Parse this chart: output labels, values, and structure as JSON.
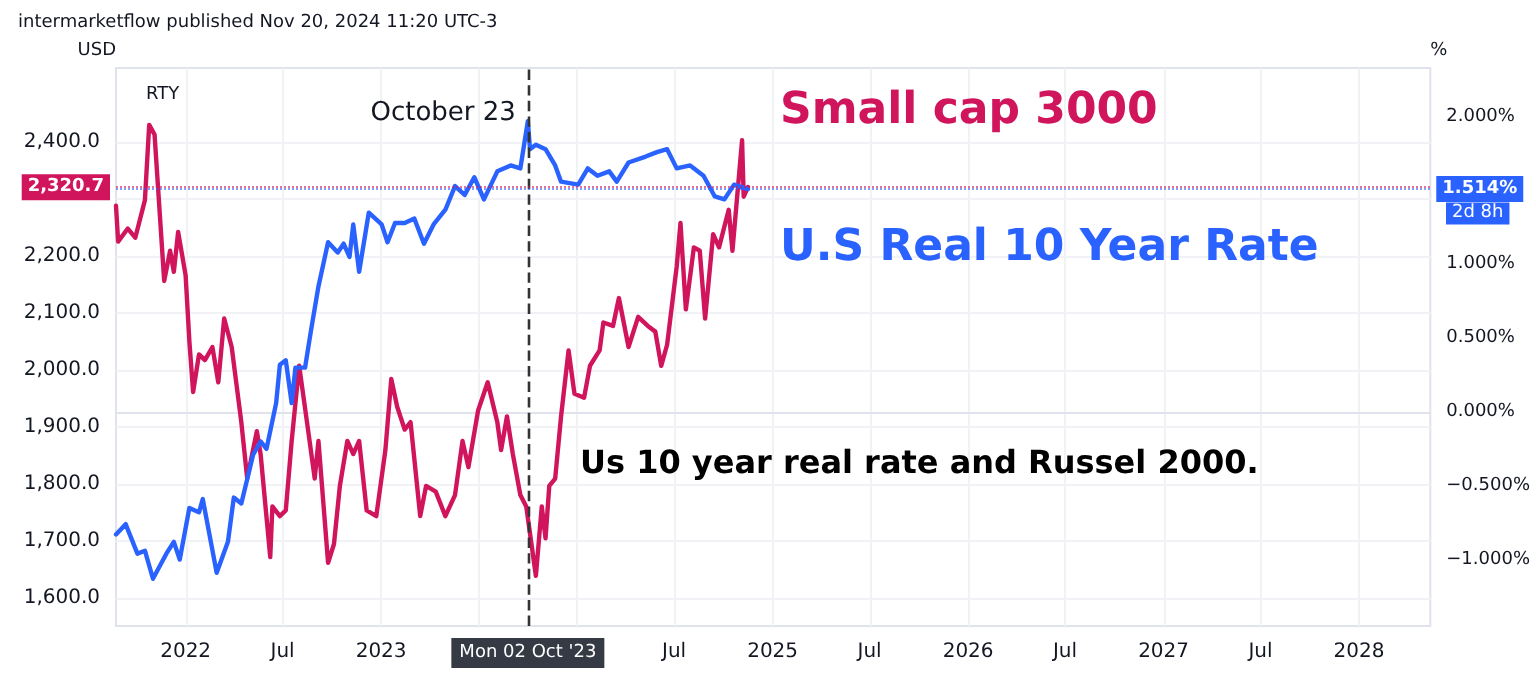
{
  "chart_data": {
    "type": "line",
    "title": "intermarketflow published Nov 20, 2024 11:20 UTC-3",
    "subtitle": "RTY",
    "ylabel": "USD",
    "y2label": "%",
    "series": [
      {
        "name": "Small cap 3000",
        "color": "#d0155d",
        "x": [
          "2021-08-24",
          "2021-08-28",
          "2021-09-15",
          "2021-09-29",
          "2021-10-17",
          "2021-10-25",
          "2021-11-04",
          "2021-11-22",
          "2021-12-03",
          "2021-12-10",
          "2021-12-18",
          "2022-01-01",
          "2022-01-08",
          "2022-01-15",
          "2022-01-26",
          "2022-02-06",
          "2022-02-20",
          "2022-03-03",
          "2022-03-14",
          "2022-03-28",
          "2022-04-15",
          "2022-04-26",
          "2022-05-14",
          "2022-05-21",
          "2022-06-08",
          "2022-06-12",
          "2022-06-26",
          "2022-07-07",
          "2022-07-18",
          "2022-08-01",
          "2022-08-19",
          "2022-08-30",
          "2022-09-06",
          "2022-09-24",
          "2022-10-05",
          "2022-10-16",
          "2022-10-30",
          "2022-11-10",
          "2022-11-21",
          "2022-12-05",
          "2022-12-23",
          "2023-01-09",
          "2023-01-20",
          "2023-01-31",
          "2023-02-14",
          "2023-02-25",
          "2023-03-15",
          "2023-03-26",
          "2023-04-13",
          "2023-05-01",
          "2023-05-19",
          "2023-06-02",
          "2023-06-13",
          "2023-07-01",
          "2023-07-19",
          "2023-08-06",
          "2023-08-13",
          "2023-08-24",
          "2023-09-04",
          "2023-09-18",
          "2023-09-29",
          "2023-10-17",
          "2023-10-28",
          "2023-11-04",
          "2023-11-11",
          "2023-11-22",
          "2023-12-03",
          "2023-12-17",
          "2023-12-28",
          "2024-01-15",
          "2024-01-26",
          "2024-02-13",
          "2024-02-20",
          "2024-03-09",
          "2024-03-20",
          "2024-04-07",
          "2024-04-25",
          "2024-05-13",
          "2024-05-27",
          "2024-06-07",
          "2024-06-18",
          "2024-07-06",
          "2024-07-13",
          "2024-07-23",
          "2024-08-07",
          "2024-08-18",
          "2024-08-28",
          "2024-09-12",
          "2024-09-23",
          "2024-10-11",
          "2024-10-18",
          "2024-11-05",
          "2024-11-08",
          "2024-11-16"
        ],
        "values": [
          2288,
          2225,
          2248,
          2232,
          2298,
          2430,
          2413,
          2156,
          2209,
          2172,
          2242,
          2166,
          2050,
          1961,
          2027,
          2017,
          2040,
          1978,
          2090,
          2040,
          1908,
          1809,
          1892,
          1852,
          1671,
          1760,
          1743,
          1753,
          1875,
          2007,
          1885,
          1809,
          1875,
          1661,
          1694,
          1796,
          1875,
          1852,
          1875,
          1753,
          1743,
          1859,
          1984,
          1935,
          1895,
          1908,
          1743,
          1796,
          1786,
          1743,
          1780,
          1875,
          1829,
          1928,
          1978,
          1908,
          1859,
          1918,
          1852,
          1780,
          1760,
          1638,
          1760,
          1704,
          1796,
          1809,
          1918,
          2034,
          1958,
          1951,
          2007,
          2034,
          2083,
          2077,
          2126,
          2040,
          2093,
          2077,
          2067,
          2007,
          2044,
          2182,
          2258,
          2106,
          2215,
          2209,
          2090,
          2238,
          2215,
          2281,
          2209,
          2403,
          2304,
          2321
        ]
      },
      {
        "name": "U.S Real 10 Year Rate",
        "color": "#2962ff",
        "axis": "y2",
        "x": [
          "2021-08-24",
          "2021-09-11",
          "2021-10-03",
          "2021-10-17",
          "2021-11-01",
          "2021-11-26",
          "2021-12-10",
          "2021-12-21",
          "2022-01-08",
          "2022-01-26",
          "2022-02-02",
          "2022-02-28",
          "2022-03-21",
          "2022-04-01",
          "2022-04-15",
          "2022-05-07",
          "2022-05-21",
          "2022-06-01",
          "2022-06-19",
          "2022-06-26",
          "2022-07-07",
          "2022-07-18",
          "2022-07-25",
          "2022-08-12",
          "2022-08-23",
          "2022-09-06",
          "2022-09-24",
          "2022-10-12",
          "2022-10-23",
          "2022-11-03",
          "2022-11-10",
          "2022-11-21",
          "2022-12-09",
          "2023-01-02",
          "2023-01-13",
          "2023-01-27",
          "2023-02-14",
          "2023-03-04",
          "2023-03-22",
          "2023-04-09",
          "2023-05-01",
          "2023-05-19",
          "2023-06-06",
          "2023-06-24",
          "2023-07-12",
          "2023-08-06",
          "2023-08-31",
          "2023-09-18",
          "2023-10-02",
          "2023-10-06",
          "2023-10-17",
          "2023-11-04",
          "2023-11-22",
          "2023-12-03",
          "2024-01-04",
          "2024-01-22",
          "2024-02-09",
          "2024-03-02",
          "2024-03-16",
          "2024-04-07",
          "2024-05-09",
          "2024-05-30",
          "2024-06-18",
          "2024-07-06",
          "2024-07-31",
          "2024-08-25",
          "2024-09-15",
          "2024-10-03",
          "2024-10-21",
          "2024-11-16"
        ],
        "values": [
          -0.83,
          -0.76,
          -0.96,
          -0.94,
          -1.13,
          -0.96,
          -0.88,
          -1.0,
          -0.65,
          -0.68,
          -0.59,
          -1.09,
          -0.88,
          -0.58,
          -0.62,
          -0.29,
          -0.2,
          -0.25,
          0.06,
          0.32,
          0.35,
          0.06,
          0.3,
          0.3,
          0.55,
          0.85,
          1.15,
          1.08,
          1.14,
          1.05,
          1.27,
          0.95,
          1.35,
          1.27,
          1.15,
          1.28,
          1.28,
          1.31,
          1.14,
          1.27,
          1.37,
          1.53,
          1.47,
          1.59,
          1.44,
          1.63,
          1.67,
          1.65,
          1.97,
          1.78,
          1.81,
          1.78,
          1.67,
          1.56,
          1.54,
          1.65,
          1.6,
          1.63,
          1.56,
          1.69,
          1.73,
          1.76,
          1.78,
          1.65,
          1.67,
          1.6,
          1.46,
          1.44,
          1.54,
          1.51
        ]
      }
    ],
    "xlim": [
      "2021-08-24",
      "2028-05-13"
    ],
    "xticks": [
      {
        "value": "2022-01-01",
        "label": "2022"
      },
      {
        "value": "2022-07-01",
        "label": "Jul"
      },
      {
        "value": "2023-01-01",
        "label": "2023"
      },
      {
        "value": "2023-07-01",
        "label": null
      },
      {
        "value": "2024-01-01",
        "label": null
      },
      {
        "value": "2024-07-01",
        "label": "Jul"
      },
      {
        "value": "2025-01-01",
        "label": "2025"
      },
      {
        "value": "2025-07-01",
        "label": "Jul"
      },
      {
        "value": "2026-01-01",
        "label": "2026"
      },
      {
        "value": "2026-07-01",
        "label": "Jul"
      },
      {
        "value": "2027-01-01",
        "label": "2027"
      },
      {
        "value": "2027-07-01",
        "label": "Jul"
      },
      {
        "value": "2028-01-01",
        "label": "2028"
      }
    ],
    "ylim": [
      1550,
      2530
    ],
    "yticks": [
      {
        "value": 1600,
        "label": "1,600.0"
      },
      {
        "value": 1700,
        "label": "1,700.0"
      },
      {
        "value": 1800,
        "label": "1,800.0"
      },
      {
        "value": 1900,
        "label": "1,900.0"
      },
      {
        "value": 2000,
        "label": "2,000.0"
      },
      {
        "value": 2100,
        "label": "2,100.0"
      },
      {
        "value": 2200,
        "label": "2,200.0"
      },
      {
        "value": 2300,
        "label": null
      },
      {
        "value": 2400,
        "label": "2,400.0"
      }
    ],
    "y2lim": [
      -1.45,
      2.33
    ],
    "y2ticks": [
      {
        "value": -1,
        "label": "−1.000%"
      },
      {
        "value": -0.5,
        "label": "−0.500%"
      },
      {
        "value": 0,
        "label": "0.000%"
      },
      {
        "value": 0.5,
        "label": "0.500%"
      },
      {
        "value": 1,
        "label": "1.000%"
      },
      {
        "value": 1.5,
        "label": null
      },
      {
        "value": 2,
        "label": "2.000%"
      }
    ],
    "ref_lines": [
      {
        "axis": "x",
        "value": "2023-10-02",
        "label": "October 23",
        "color": "#333333",
        "line_style": "dashed"
      },
      {
        "axis": "y",
        "value": 2320.7,
        "label": "2,320.7",
        "color": "#d0155d",
        "line_style": "dotted"
      },
      {
        "axis": "y2",
        "value": 1.514,
        "label": "1.514%",
        "color": "#2962ff",
        "line_style": "dotted"
      }
    ],
    "annotations": [
      "Us 10 year real rate and Russel 2000.",
      "Mon 02 Oct '23",
      "2d 8h"
    ],
    "grid": true,
    "legend": false,
    "marker": "none",
    "line_style": "solid"
  }
}
